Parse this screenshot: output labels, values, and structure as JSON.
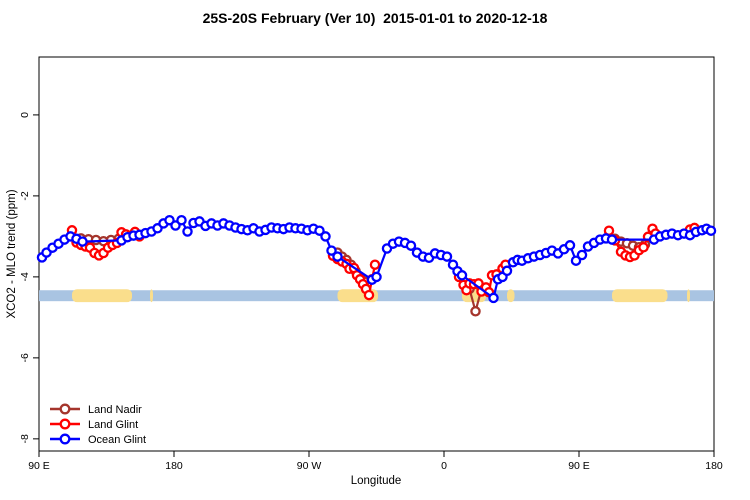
{
  "title": "25S-20S February (Ver 10)  2015-01-01 to 2020-12-18",
  "chart_data": {
    "type": "line",
    "title": "25S-20S February (Ver 10)  2015-01-01 to 2020-12-18",
    "xlabel": "Longitude",
    "ylabel": "XCO2 - MLO trend (ppm)",
    "x_range_deg": [
      0,
      450
    ],
    "ylim": [
      -8.3,
      1.43
    ],
    "grid": false,
    "x_ticks": [
      {
        "pos": 0,
        "label": "90 E"
      },
      {
        "pos": 90,
        "label": "180"
      },
      {
        "pos": 180,
        "label": "90 W"
      },
      {
        "pos": 270,
        "label": "0"
      },
      {
        "pos": 360,
        "label": "90 E"
      },
      {
        "pos": 450,
        "label": "180"
      }
    ],
    "y_ticks": [
      {
        "value": 0,
        "label": "0"
      },
      {
        "value": -2,
        "label": "-2"
      },
      {
        "value": -4,
        "label": "-4"
      },
      {
        "value": -6,
        "label": "-6"
      },
      {
        "value": -8,
        "label": "-8"
      }
    ],
    "legend": {
      "position": "bottom-left",
      "entries": [
        {
          "label": "Land Nadir",
          "color": "#A5352C"
        },
        {
          "label": "Land Glint",
          "color": "#FF0000"
        },
        {
          "label": "Ocean Glint",
          "color": "#0000FF"
        }
      ]
    },
    "band": {
      "ocean_color": "#A9C4E2",
      "land_color": "#FADE8C",
      "value_range": [
        -4.33,
        -4.6
      ],
      "land_segments_deg": [
        [
          22,
          62
        ],
        [
          74,
          76
        ],
        [
          199,
          226
        ],
        [
          282,
          298
        ],
        [
          312,
          317
        ],
        [
          382,
          419
        ],
        [
          432,
          434
        ]
      ]
    },
    "series": [
      {
        "name": "Land Nadir",
        "color": "#A5352C",
        "marker": "open-circle",
        "segments": [
          [
            [
              28,
              -3.05
            ],
            [
              33,
              -3.07
            ],
            [
              38,
              -3.09
            ],
            [
              43,
              -3.12
            ],
            [
              48,
              -3.09
            ],
            [
              53,
              -3.06
            ]
          ],
          [
            [
              199,
              -3.4
            ],
            [
              202,
              -3.5
            ],
            [
              205,
              -3.58
            ],
            [
              208,
              -3.7
            ],
            [
              211,
              -3.85
            ],
            [
              214,
              -4.0
            ],
            [
              217,
              -4.12
            ]
          ],
          [
            [
              287,
              -4.3
            ],
            [
              291,
              -4.85
            ],
            [
              295,
              -4.3
            ]
          ],
          [
            [
              384,
              -3.06
            ],
            [
              388,
              -3.13
            ],
            [
              392,
              -3.17
            ],
            [
              396,
              -3.23
            ],
            [
              400,
              -3.27
            ],
            [
              404,
              -3.2
            ]
          ]
        ]
      },
      {
        "name": "Land Glint",
        "color": "#FF0000",
        "marker": "open-circle",
        "segments": [
          [
            [
              22,
              -2.85
            ],
            [
              25,
              -3.15
            ],
            [
              28,
              -3.21
            ],
            [
              31,
              -3.25
            ],
            [
              34,
              -3.28
            ],
            [
              37,
              -3.41
            ],
            [
              40,
              -3.47
            ],
            [
              43,
              -3.41
            ],
            [
              46,
              -3.28
            ],
            [
              49,
              -3.21
            ],
            [
              52,
              -3.16
            ],
            [
              55,
              -2.9
            ],
            [
              58,
              -2.95
            ],
            [
              61,
              -2.98
            ],
            [
              64,
              -2.89
            ],
            [
              67,
              -3.0
            ]
          ],
          [
            [
              196,
              -3.48
            ],
            [
              199,
              -3.56
            ],
            [
              202,
              -3.62
            ],
            [
              205,
              -3.68
            ],
            [
              207,
              -3.8
            ],
            [
              210,
              -3.78
            ],
            [
              212,
              -3.96
            ],
            [
              214,
              -4.06
            ],
            [
              216,
              -4.18
            ],
            [
              218,
              -4.3
            ],
            [
              220,
              -4.45
            ],
            [
              222,
              -4.06
            ],
            [
              224,
              -3.7
            ]
          ],
          [
            [
              280,
              -4.0
            ],
            [
              283,
              -4.2
            ],
            [
              285,
              -4.33
            ],
            [
              287,
              -4.16
            ],
            [
              290,
              -4.18
            ],
            [
              293,
              -4.16
            ],
            [
              295,
              -4.36
            ],
            [
              298,
              -4.26
            ],
            [
              300,
              -4.38
            ],
            [
              302,
              -3.96
            ],
            [
              305,
              -3.94
            ],
            [
              309,
              -3.79
            ],
            [
              311,
              -3.7
            ]
          ],
          [
            [
              380,
              -2.86
            ],
            [
              384,
              -3.1
            ],
            [
              388,
              -3.38
            ],
            [
              391,
              -3.47
            ],
            [
              394,
              -3.51
            ],
            [
              397,
              -3.47
            ],
            [
              400,
              -3.34
            ],
            [
              403,
              -3.27
            ],
            [
              406,
              -3.01
            ],
            [
              409,
              -2.81
            ],
            [
              411,
              -2.93
            ]
          ],
          [
            [
              434,
              -2.83
            ],
            [
              437,
              -2.79
            ]
          ]
        ]
      },
      {
        "name": "Ocean Glint",
        "color": "#0000FF",
        "marker": "open-circle",
        "segments": [
          [
            [
              2,
              -3.52
            ],
            [
              5,
              -3.4
            ],
            [
              9,
              -3.28
            ],
            [
              13,
              -3.18
            ],
            [
              17,
              -3.08
            ],
            [
              21,
              -3.0
            ],
            [
              25,
              -3.06
            ],
            [
              29,
              -3.13
            ],
            [
              55,
              -3.1
            ],
            [
              59,
              -3.02
            ],
            [
              63,
              -2.98
            ],
            [
              67,
              -2.96
            ],
            [
              71,
              -2.92
            ],
            [
              75,
              -2.88
            ],
            [
              79,
              -2.8
            ],
            [
              83,
              -2.68
            ],
            [
              87,
              -2.6
            ],
            [
              91,
              -2.73
            ],
            [
              95,
              -2.6
            ],
            [
              99,
              -2.88
            ],
            [
              103,
              -2.67
            ],
            [
              107,
              -2.63
            ],
            [
              111,
              -2.74
            ],
            [
              115,
              -2.68
            ],
            [
              119,
              -2.73
            ],
            [
              123,
              -2.68
            ],
            [
              127,
              -2.73
            ],
            [
              131,
              -2.78
            ],
            [
              135,
              -2.82
            ],
            [
              139,
              -2.85
            ],
            [
              143,
              -2.8
            ],
            [
              147,
              -2.88
            ],
            [
              151,
              -2.84
            ],
            [
              155,
              -2.78
            ],
            [
              159,
              -2.8
            ],
            [
              163,
              -2.82
            ],
            [
              167,
              -2.78
            ],
            [
              171,
              -2.8
            ],
            [
              175,
              -2.81
            ],
            [
              179,
              -2.85
            ],
            [
              183,
              -2.81
            ],
            [
              187,
              -2.86
            ],
            [
              191,
              -3.0
            ],
            [
              195,
              -3.35
            ],
            [
              199,
              -3.5
            ],
            [
              222,
              -4.07
            ],
            [
              225,
              -4.0
            ],
            [
              232,
              -3.3
            ],
            [
              236,
              -3.18
            ],
            [
              240,
              -3.13
            ],
            [
              244,
              -3.16
            ],
            [
              248,
              -3.23
            ],
            [
              252,
              -3.4
            ],
            [
              256,
              -3.5
            ],
            [
              260,
              -3.53
            ],
            [
              264,
              -3.42
            ],
            [
              268,
              -3.46
            ],
            [
              272,
              -3.5
            ],
            [
              276,
              -3.7
            ],
            [
              279,
              -3.86
            ],
            [
              282,
              -3.96
            ],
            [
              303,
              -4.52
            ],
            [
              306,
              -4.06
            ],
            [
              309,
              -4.0
            ],
            [
              312,
              -3.85
            ],
            [
              316,
              -3.64
            ],
            [
              319,
              -3.58
            ],
            [
              322,
              -3.6
            ],
            [
              326,
              -3.54
            ],
            [
              330,
              -3.5
            ],
            [
              334,
              -3.46
            ],
            [
              338,
              -3.41
            ],
            [
              342,
              -3.35
            ],
            [
              346,
              -3.42
            ],
            [
              350,
              -3.32
            ],
            [
              354,
              -3.22
            ],
            [
              358,
              -3.6
            ],
            [
              362,
              -3.46
            ],
            [
              366,
              -3.25
            ],
            [
              370,
              -3.16
            ],
            [
              374,
              -3.08
            ],
            [
              378,
              -3.05
            ],
            [
              382,
              -3.08
            ],
            [
              410,
              -3.08
            ],
            [
              414,
              -3.0
            ],
            [
              418,
              -2.96
            ],
            [
              422,
              -2.93
            ],
            [
              426,
              -2.97
            ],
            [
              430,
              -2.93
            ],
            [
              434,
              -2.97
            ],
            [
              438,
              -2.89
            ],
            [
              442,
              -2.85
            ],
            [
              445,
              -2.81
            ],
            [
              448,
              -2.86
            ]
          ]
        ]
      }
    ]
  }
}
